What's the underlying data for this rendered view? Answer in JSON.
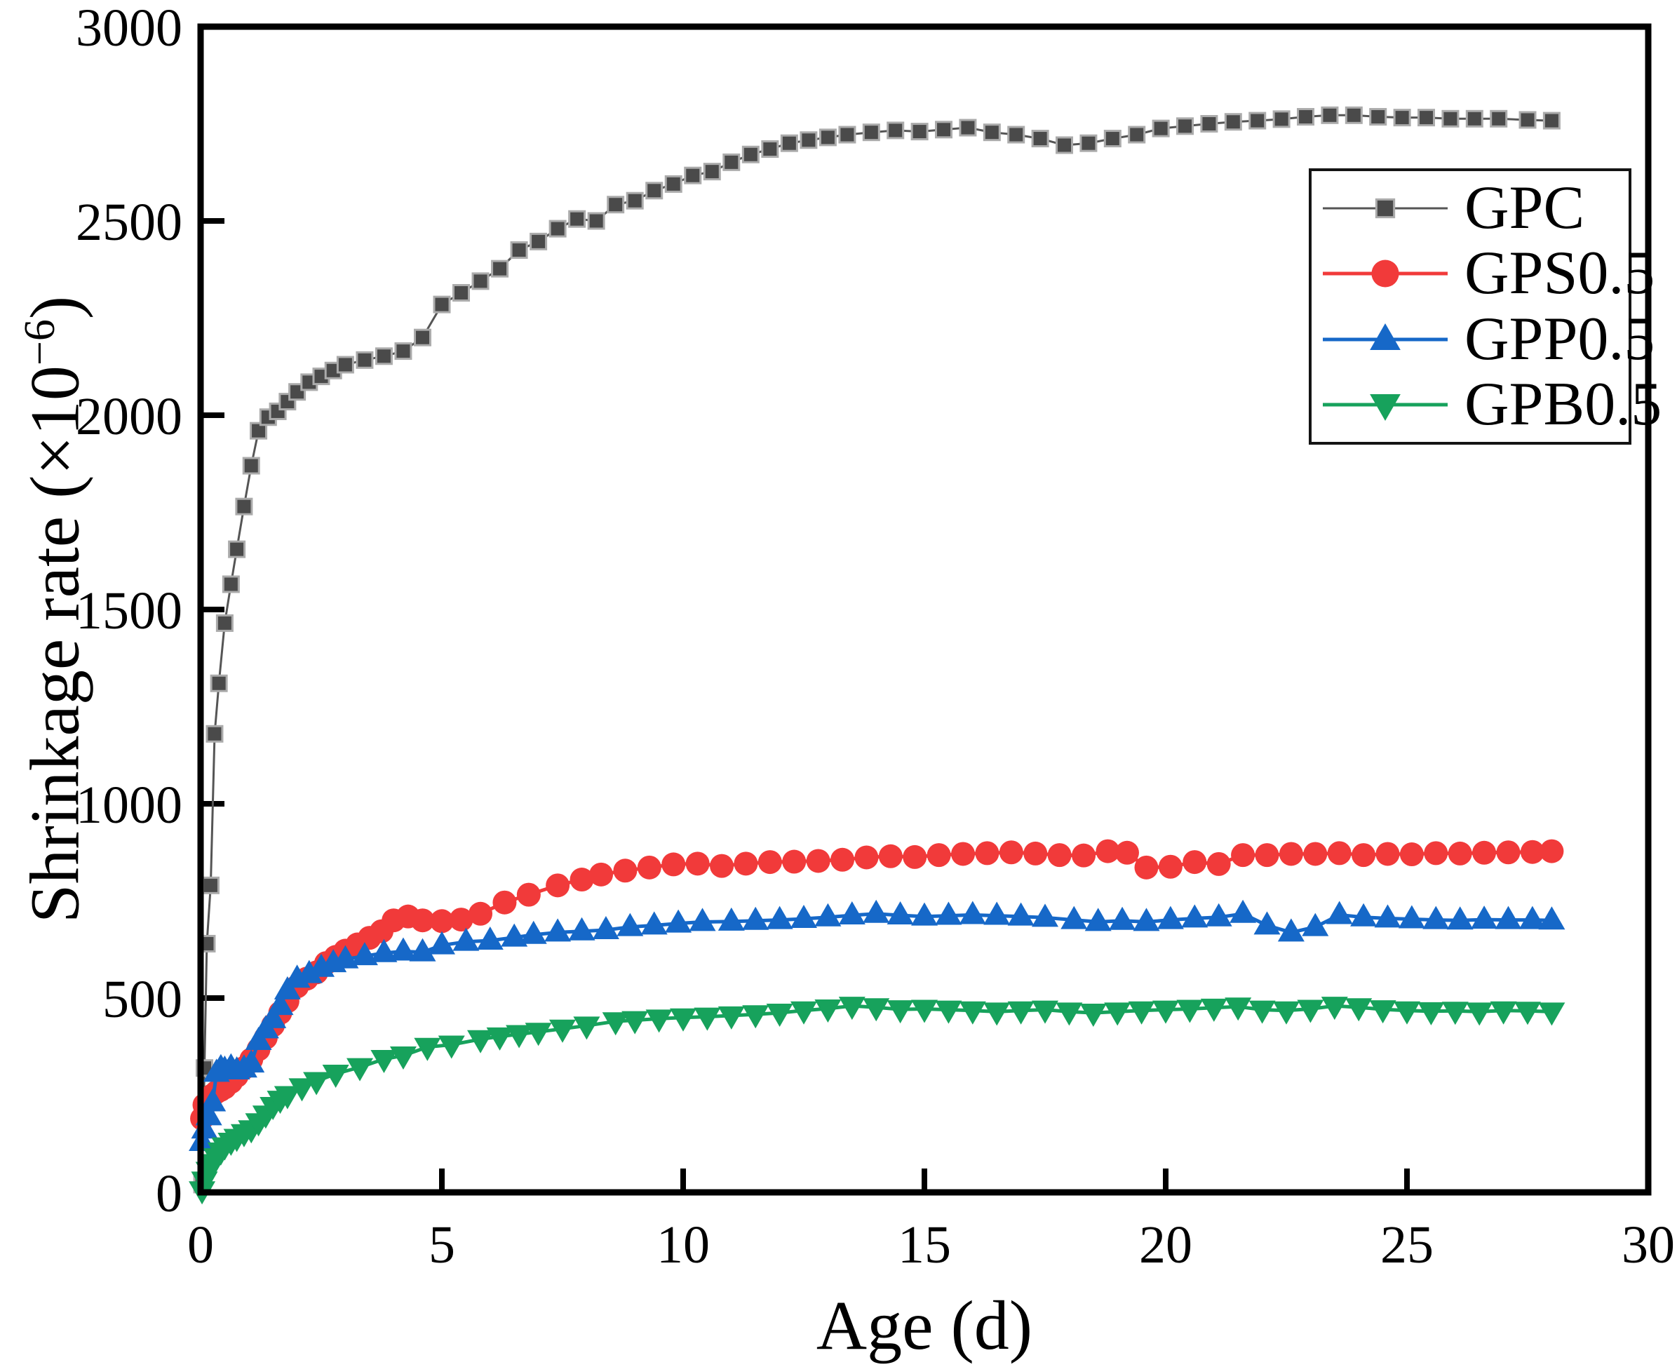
{
  "figure": {
    "background": "#ffffff",
    "xlabel": "Age (d)",
    "ylabel_prefix": "Shrinkage rate (×10",
    "ylabel_sup": "−6",
    "ylabel_suffix": ")"
  },
  "chart_data": {
    "type": "line",
    "title": "",
    "xlabel": "Age (d)",
    "ylabel": "Shrinkage rate (×10⁻⁶)",
    "xlim": [
      0,
      30
    ],
    "ylim": [
      0,
      3000
    ],
    "xticks": [
      0,
      5,
      10,
      15,
      20,
      25,
      30
    ],
    "yticks": [
      0,
      500,
      1000,
      1500,
      2000,
      2500,
      3000
    ],
    "grid": false,
    "legend_position": "upper right",
    "frame_color": "#000000",
    "series": [
      {
        "name": "GPC",
        "marker": "square",
        "color": "#4a4a4a",
        "line_color": "#555555",
        "marker_edge": "#ababab",
        "line_width": 3,
        "points": [
          [
            0.03,
            20
          ],
          [
            0.08,
            320
          ],
          [
            0.13,
            640
          ],
          [
            0.21,
            790
          ],
          [
            0.29,
            1180
          ],
          [
            0.38,
            1310
          ],
          [
            0.5,
            1465
          ],
          [
            0.63,
            1565
          ],
          [
            0.75,
            1655
          ],
          [
            0.9,
            1765
          ],
          [
            1.05,
            1870
          ],
          [
            1.2,
            1960
          ],
          [
            1.4,
            1995
          ],
          [
            1.6,
            2010
          ],
          [
            1.8,
            2035
          ],
          [
            2.0,
            2060
          ],
          [
            2.25,
            2085
          ],
          [
            2.5,
            2100
          ],
          [
            2.75,
            2115
          ],
          [
            3.0,
            2130
          ],
          [
            3.4,
            2142
          ],
          [
            3.8,
            2152
          ],
          [
            4.2,
            2165
          ],
          [
            4.6,
            2200
          ],
          [
            5.0,
            2285
          ],
          [
            5.4,
            2315
          ],
          [
            5.8,
            2345
          ],
          [
            6.2,
            2377
          ],
          [
            6.6,
            2425
          ],
          [
            7.0,
            2447
          ],
          [
            7.4,
            2480
          ],
          [
            7.8,
            2505
          ],
          [
            8.2,
            2500
          ],
          [
            8.6,
            2542
          ],
          [
            9.0,
            2552
          ],
          [
            9.4,
            2578
          ],
          [
            9.8,
            2595
          ],
          [
            10.2,
            2617
          ],
          [
            10.6,
            2627
          ],
          [
            11.0,
            2651
          ],
          [
            11.4,
            2671
          ],
          [
            11.8,
            2685
          ],
          [
            12.2,
            2700
          ],
          [
            12.6,
            2708
          ],
          [
            13.0,
            2715
          ],
          [
            13.4,
            2722
          ],
          [
            13.9,
            2728
          ],
          [
            14.4,
            2733
          ],
          [
            14.9,
            2730
          ],
          [
            15.4,
            2735
          ],
          [
            15.9,
            2740
          ],
          [
            16.4,
            2728
          ],
          [
            16.9,
            2722
          ],
          [
            17.4,
            2712
          ],
          [
            17.9,
            2695
          ],
          [
            18.4,
            2700
          ],
          [
            18.9,
            2712
          ],
          [
            19.4,
            2722
          ],
          [
            19.9,
            2738
          ],
          [
            20.4,
            2744
          ],
          [
            20.9,
            2750
          ],
          [
            21.4,
            2755
          ],
          [
            21.9,
            2758
          ],
          [
            22.4,
            2762
          ],
          [
            22.9,
            2768
          ],
          [
            23.4,
            2772
          ],
          [
            23.9,
            2772
          ],
          [
            24.4,
            2768
          ],
          [
            24.9,
            2766
          ],
          [
            25.4,
            2766
          ],
          [
            25.9,
            2763
          ],
          [
            26.4,
            2763
          ],
          [
            26.9,
            2763
          ],
          [
            27.5,
            2760
          ],
          [
            28.0,
            2758
          ]
        ]
      },
      {
        "name": "GPS0.5",
        "marker": "circle",
        "color": "#f13a3a",
        "line_color": "#f13a3a",
        "marker_edge": "",
        "line_width": 5,
        "points": [
          [
            0.03,
            190
          ],
          [
            0.08,
            225
          ],
          [
            0.17,
            240
          ],
          [
            0.25,
            250
          ],
          [
            0.33,
            258
          ],
          [
            0.42,
            264
          ],
          [
            0.5,
            270
          ],
          [
            0.63,
            284
          ],
          [
            0.75,
            300
          ],
          [
            0.9,
            320
          ],
          [
            1.05,
            342
          ],
          [
            1.2,
            368
          ],
          [
            1.35,
            398
          ],
          [
            1.5,
            430
          ],
          [
            1.65,
            462
          ],
          [
            1.8,
            492
          ],
          [
            2.0,
            530
          ],
          [
            2.2,
            550
          ],
          [
            2.4,
            566
          ],
          [
            2.6,
            590
          ],
          [
            2.8,
            606
          ],
          [
            3.0,
            622
          ],
          [
            3.25,
            638
          ],
          [
            3.5,
            655
          ],
          [
            3.75,
            672
          ],
          [
            4.0,
            700
          ],
          [
            4.3,
            710
          ],
          [
            4.6,
            700
          ],
          [
            5.0,
            698
          ],
          [
            5.4,
            702
          ],
          [
            5.8,
            717
          ],
          [
            6.3,
            746
          ],
          [
            6.8,
            766
          ],
          [
            7.4,
            790
          ],
          [
            7.9,
            805
          ],
          [
            8.3,
            818
          ],
          [
            8.8,
            828
          ],
          [
            9.3,
            836
          ],
          [
            9.8,
            844
          ],
          [
            10.3,
            846
          ],
          [
            10.8,
            840
          ],
          [
            11.3,
            846
          ],
          [
            11.8,
            850
          ],
          [
            12.3,
            851
          ],
          [
            12.8,
            853
          ],
          [
            13.3,
            856
          ],
          [
            13.8,
            862
          ],
          [
            14.3,
            865
          ],
          [
            14.8,
            863
          ],
          [
            15.3,
            868
          ],
          [
            15.8,
            871
          ],
          [
            16.3,
            873
          ],
          [
            16.8,
            875
          ],
          [
            17.3,
            872
          ],
          [
            17.8,
            868
          ],
          [
            18.3,
            867
          ],
          [
            18.8,
            878
          ],
          [
            19.2,
            874
          ],
          [
            19.6,
            836
          ],
          [
            20.1,
            838
          ],
          [
            20.6,
            850
          ],
          [
            21.1,
            845
          ],
          [
            21.6,
            868
          ],
          [
            22.1,
            868
          ],
          [
            22.6,
            871
          ],
          [
            23.1,
            871
          ],
          [
            23.6,
            873
          ],
          [
            24.1,
            868
          ],
          [
            24.6,
            871
          ],
          [
            25.1,
            870
          ],
          [
            25.6,
            873
          ],
          [
            26.1,
            872
          ],
          [
            26.6,
            874
          ],
          [
            27.1,
            875
          ],
          [
            27.6,
            876
          ],
          [
            28.0,
            878
          ]
        ]
      },
      {
        "name": "GPP0.5",
        "marker": "triangle-up",
        "color": "#1668c8",
        "line_color": "#1668c8",
        "marker_edge": "",
        "line_width": 5,
        "points": [
          [
            0.03,
            130
          ],
          [
            0.08,
            162
          ],
          [
            0.17,
            196
          ],
          [
            0.25,
            232
          ],
          [
            0.33,
            308
          ],
          [
            0.42,
            320
          ],
          [
            0.5,
            316
          ],
          [
            0.63,
            322
          ],
          [
            0.75,
            314
          ],
          [
            0.9,
            319
          ],
          [
            1.05,
            332
          ],
          [
            1.2,
            390
          ],
          [
            1.35,
            420
          ],
          [
            1.5,
            446
          ],
          [
            1.65,
            480
          ],
          [
            1.8,
            520
          ],
          [
            2.0,
            550
          ],
          [
            2.25,
            562
          ],
          [
            2.5,
            578
          ],
          [
            2.75,
            590
          ],
          [
            3.0,
            600
          ],
          [
            3.4,
            608
          ],
          [
            3.8,
            616
          ],
          [
            4.2,
            620
          ],
          [
            4.6,
            618
          ],
          [
            5.0,
            636
          ],
          [
            5.5,
            645
          ],
          [
            6.0,
            648
          ],
          [
            6.5,
            656
          ],
          [
            6.9,
            663
          ],
          [
            7.4,
            669
          ],
          [
            7.9,
            672
          ],
          [
            8.4,
            675
          ],
          [
            8.9,
            683
          ],
          [
            9.4,
            687
          ],
          [
            9.9,
            692
          ],
          [
            10.4,
            696
          ],
          [
            11.0,
            697
          ],
          [
            11.5,
            699
          ],
          [
            12.0,
            701
          ],
          [
            12.5,
            704
          ],
          [
            13.0,
            708
          ],
          [
            13.5,
            713
          ],
          [
            14.0,
            717
          ],
          [
            14.5,
            713
          ],
          [
            15.0,
            710
          ],
          [
            15.5,
            712
          ],
          [
            16.0,
            714
          ],
          [
            16.5,
            712
          ],
          [
            17.0,
            710
          ],
          [
            17.5,
            707
          ],
          [
            18.1,
            701
          ],
          [
            18.6,
            696
          ],
          [
            19.1,
            699
          ],
          [
            19.6,
            696
          ],
          [
            20.1,
            701
          ],
          [
            20.6,
            705
          ],
          [
            21.1,
            708
          ],
          [
            21.6,
            717
          ],
          [
            22.1,
            687
          ],
          [
            22.6,
            669
          ],
          [
            23.1,
            683
          ],
          [
            23.6,
            714
          ],
          [
            24.1,
            708
          ],
          [
            24.6,
            705
          ],
          [
            25.1,
            703
          ],
          [
            25.6,
            701
          ],
          [
            26.1,
            700
          ],
          [
            26.6,
            702
          ],
          [
            27.1,
            701
          ],
          [
            27.6,
            701
          ],
          [
            28.0,
            700
          ]
        ]
      },
      {
        "name": "GPB0.5",
        "marker": "triangle-down",
        "color": "#17a25c",
        "line_color": "#17a25c",
        "marker_edge": "",
        "line_width": 5,
        "points": [
          [
            0.03,
            5
          ],
          [
            0.08,
            30
          ],
          [
            0.17,
            55
          ],
          [
            0.25,
            75
          ],
          [
            0.33,
            90
          ],
          [
            0.42,
            105
          ],
          [
            0.5,
            118
          ],
          [
            0.63,
            130
          ],
          [
            0.75,
            140
          ],
          [
            0.9,
            152
          ],
          [
            1.05,
            162
          ],
          [
            1.2,
            180
          ],
          [
            1.35,
            200
          ],
          [
            1.5,
            222
          ],
          [
            1.65,
            238
          ],
          [
            1.8,
            250
          ],
          [
            2.1,
            270
          ],
          [
            2.4,
            286
          ],
          [
            2.8,
            305
          ],
          [
            3.3,
            322
          ],
          [
            3.8,
            343
          ],
          [
            4.2,
            352
          ],
          [
            4.7,
            374
          ],
          [
            5.2,
            380
          ],
          [
            5.8,
            394
          ],
          [
            6.2,
            401
          ],
          [
            6.6,
            407
          ],
          [
            7.0,
            413
          ],
          [
            7.5,
            421
          ],
          [
            8.0,
            429
          ],
          [
            8.6,
            440
          ],
          [
            9.0,
            443
          ],
          [
            9.5,
            447
          ],
          [
            10.0,
            450
          ],
          [
            10.5,
            452
          ],
          [
            11.0,
            455
          ],
          [
            11.5,
            458
          ],
          [
            12.0,
            462
          ],
          [
            12.5,
            468
          ],
          [
            13.0,
            473
          ],
          [
            13.5,
            480
          ],
          [
            14.0,
            476
          ],
          [
            14.5,
            471
          ],
          [
            15.0,
            472
          ],
          [
            15.5,
            470
          ],
          [
            16.0,
            468
          ],
          [
            16.5,
            465
          ],
          [
            17.0,
            468
          ],
          [
            17.5,
            470
          ],
          [
            18.0,
            465
          ],
          [
            18.5,
            462
          ],
          [
            19.0,
            465
          ],
          [
            19.5,
            468
          ],
          [
            20.0,
            470
          ],
          [
            20.5,
            472
          ],
          [
            21.0,
            475
          ],
          [
            21.5,
            478
          ],
          [
            22.0,
            470
          ],
          [
            22.5,
            468
          ],
          [
            23.0,
            472
          ],
          [
            23.5,
            480
          ],
          [
            24.0,
            476
          ],
          [
            24.5,
            471
          ],
          [
            25.0,
            468
          ],
          [
            25.5,
            466
          ],
          [
            26.0,
            467
          ],
          [
            26.5,
            465
          ],
          [
            27.0,
            468
          ],
          [
            27.5,
            467
          ],
          [
            28.0,
            465
          ]
        ]
      }
    ]
  }
}
